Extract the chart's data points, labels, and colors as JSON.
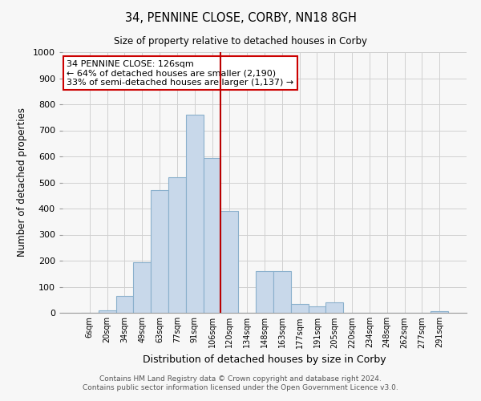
{
  "title": "34, PENNINE CLOSE, CORBY, NN18 8GH",
  "subtitle": "Size of property relative to detached houses in Corby",
  "xlabel": "Distribution of detached houses by size in Corby",
  "ylabel": "Number of detached properties",
  "bar_labels": [
    "6sqm",
    "20sqm",
    "34sqm",
    "49sqm",
    "63sqm",
    "77sqm",
    "91sqm",
    "106sqm",
    "120sqm",
    "134sqm",
    "148sqm",
    "163sqm",
    "177sqm",
    "191sqm",
    "205sqm",
    "220sqm",
    "234sqm",
    "248sqm",
    "262sqm",
    "277sqm",
    "291sqm"
  ],
  "bar_heights": [
    0,
    10,
    65,
    195,
    470,
    520,
    760,
    595,
    390,
    0,
    160,
    160,
    35,
    25,
    40,
    0,
    0,
    0,
    0,
    0,
    5
  ],
  "bar_color": "#c8d8ea",
  "bar_edge_color": "#8ab0cc",
  "vline_after_index": 7,
  "vline_color": "#bb0000",
  "ylim": [
    0,
    1000
  ],
  "yticks": [
    0,
    100,
    200,
    300,
    400,
    500,
    600,
    700,
    800,
    900,
    1000
  ],
  "annotation_title": "34 PENNINE CLOSE: 126sqm",
  "annotation_line1": "← 64% of detached houses are smaller (2,190)",
  "annotation_line2": "33% of semi-detached houses are larger (1,137) →",
  "annotation_box_color": "#ffffff",
  "annotation_box_edge": "#cc0000",
  "footer1": "Contains HM Land Registry data © Crown copyright and database right 2024.",
  "footer2": "Contains public sector information licensed under the Open Government Licence v3.0.",
  "bg_color": "#f7f7f7",
  "grid_color": "#d0d0d0",
  "spine_color": "#999999"
}
